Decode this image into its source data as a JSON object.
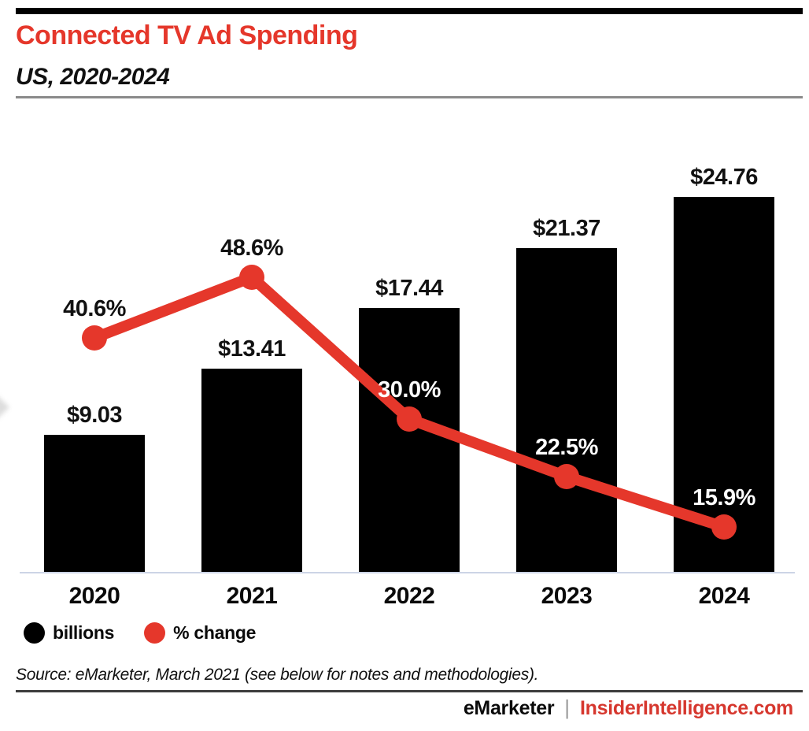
{
  "title": "Connected TV Ad Spending",
  "subtitle": "US, 2020-2024",
  "chart_data": {
    "type": "combo",
    "categories": [
      "2020",
      "2021",
      "2022",
      "2023",
      "2024"
    ],
    "series": [
      {
        "name": "billions",
        "kind": "bar",
        "values": [
          9.03,
          13.41,
          17.44,
          21.37,
          24.76
        ],
        "labels": [
          "$9.03",
          "$13.41",
          "$17.44",
          "$21.37",
          "$24.76"
        ],
        "color": "#000000"
      },
      {
        "name": "% change",
        "kind": "line",
        "values": [
          40.6,
          48.6,
          30.0,
          22.5,
          15.9
        ],
        "labels": [
          "40.6%",
          "48.6%",
          "30.0%",
          "22.5%",
          "15.9%"
        ],
        "color": "#E5372B",
        "label_colors": [
          "#111111",
          "#111111",
          "#ffffff",
          "#ffffff",
          "#ffffff"
        ]
      }
    ],
    "title": "Connected TV Ad Spending",
    "subtitle": "US, 2020-2024",
    "xlabel": "",
    "ylabel": "",
    "grid": false,
    "axes_shown": "x-baseline-only",
    "value_labels": "shown",
    "legend_position": "bottom-left"
  },
  "legend": {
    "items": [
      {
        "label": "billions",
        "color": "#000000"
      },
      {
        "label": "% change",
        "color": "#E5372B"
      }
    ]
  },
  "source": "Source: eMarketer, March 2021 (see below for notes and methodologies).",
  "footer": {
    "brand": "eMarketer",
    "separator": "|",
    "site": "InsiderIntelligence.com"
  },
  "colors": {
    "accent_red": "#E5372B",
    "bar_black": "#000000",
    "axis_line": "#CCD4E6",
    "rule_gray": "#8A8A8A",
    "rule_dark": "#3D3D3D",
    "footer_red": "#D6372E",
    "text": "#111111"
  }
}
